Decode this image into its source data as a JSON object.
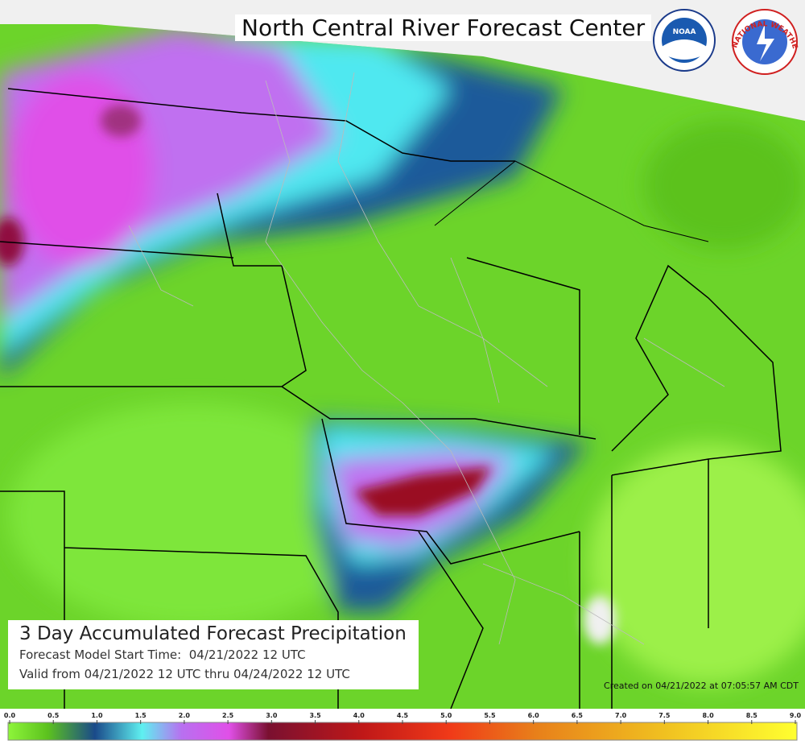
{
  "header": {
    "title": "North Central River Forecast Center"
  },
  "logos": {
    "noaa": "NOAA",
    "nws": "NATIONAL WEATHER SERVICE"
  },
  "caption": {
    "title": "3 Day Accumulated Forecast Precipitation",
    "start": "Forecast Model Start Time:  04/21/2022 12 UTC",
    "valid": "Valid from 04/21/2022 12 UTC thru 04/24/2022 12 UTC"
  },
  "created": "Created on 04/21/2022 at 07:05:57 AM CDT",
  "legend": {
    "labels": [
      "0.0",
      "0.5",
      "1.0",
      "1.5",
      "2.0",
      "2.5",
      "3.0",
      "3.5",
      "4.0",
      "4.5",
      "5.0",
      "5.5",
      "6.0",
      "6.5",
      "7.0",
      "7.5",
      "8.0",
      "8.5",
      "9.0"
    ]
  }
}
